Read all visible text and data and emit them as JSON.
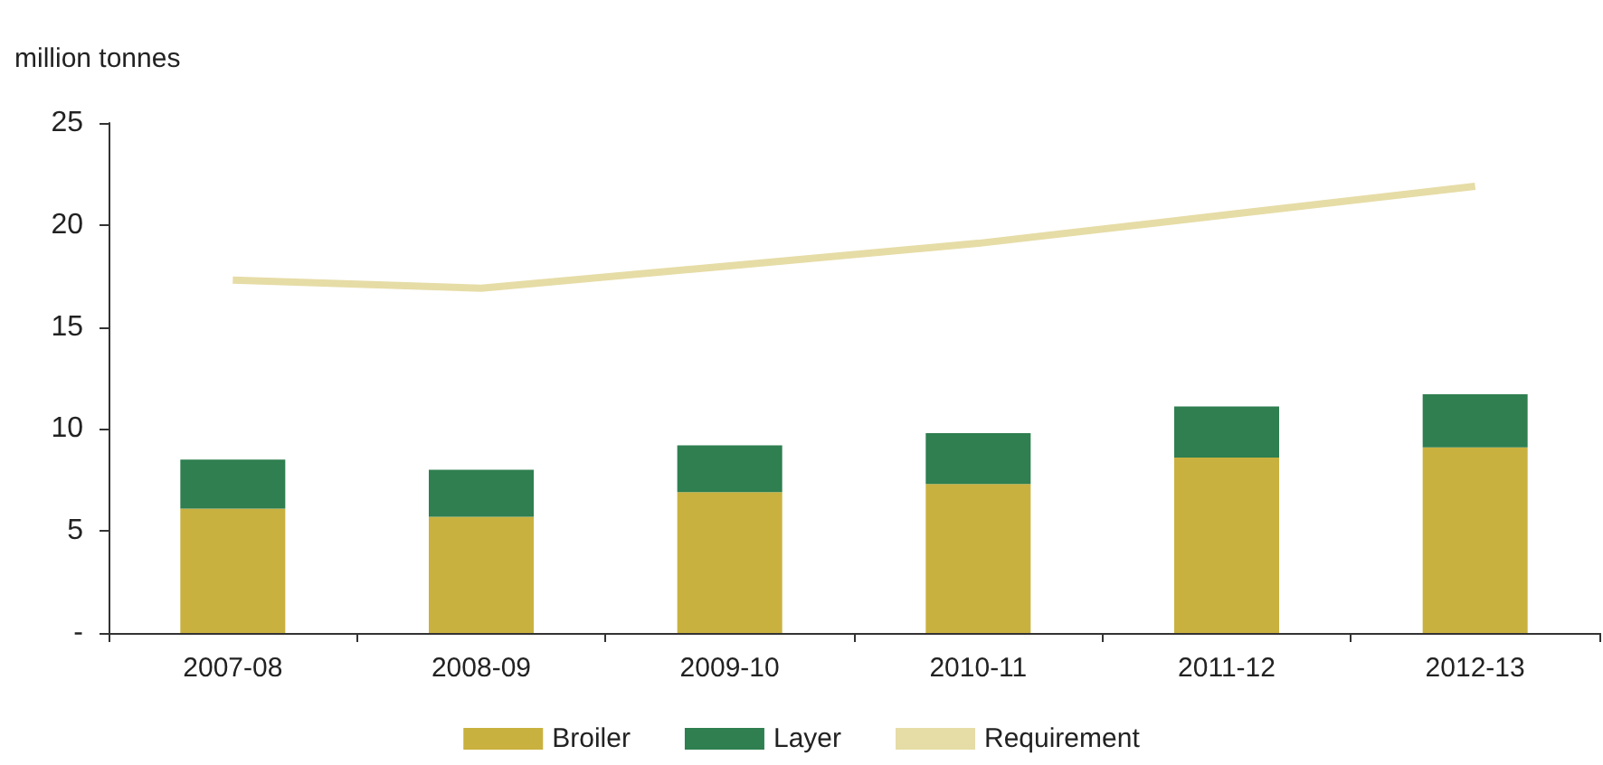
{
  "chart_data": {
    "type": "bar",
    "ylabel": "million tonnes",
    "categories": [
      "2007-08",
      "2008-09",
      "2009-10",
      "2010-11",
      "2011-12",
      "2012-13"
    ],
    "stacked": true,
    "series": [
      {
        "name": "Broiler",
        "color": "#c9b13f",
        "values": [
          6.1,
          5.7,
          6.9,
          7.3,
          8.6,
          9.1
        ]
      },
      {
        "name": "Layer",
        "color": "#2f7f50",
        "values": [
          2.4,
          2.3,
          2.3,
          2.5,
          2.5,
          2.6
        ]
      },
      {
        "name": "Requirement",
        "type": "line",
        "color": "#e6dca6",
        "values": [
          17.3,
          16.9,
          18.0,
          19.1,
          20.5,
          21.9
        ]
      }
    ],
    "ylim": [
      0,
      25
    ],
    "yticks": [
      {
        "value": 0,
        "label": "-"
      },
      5,
      10,
      15,
      20,
      25
    ],
    "grid": false,
    "legend": "bottom",
    "marker": "none"
  }
}
